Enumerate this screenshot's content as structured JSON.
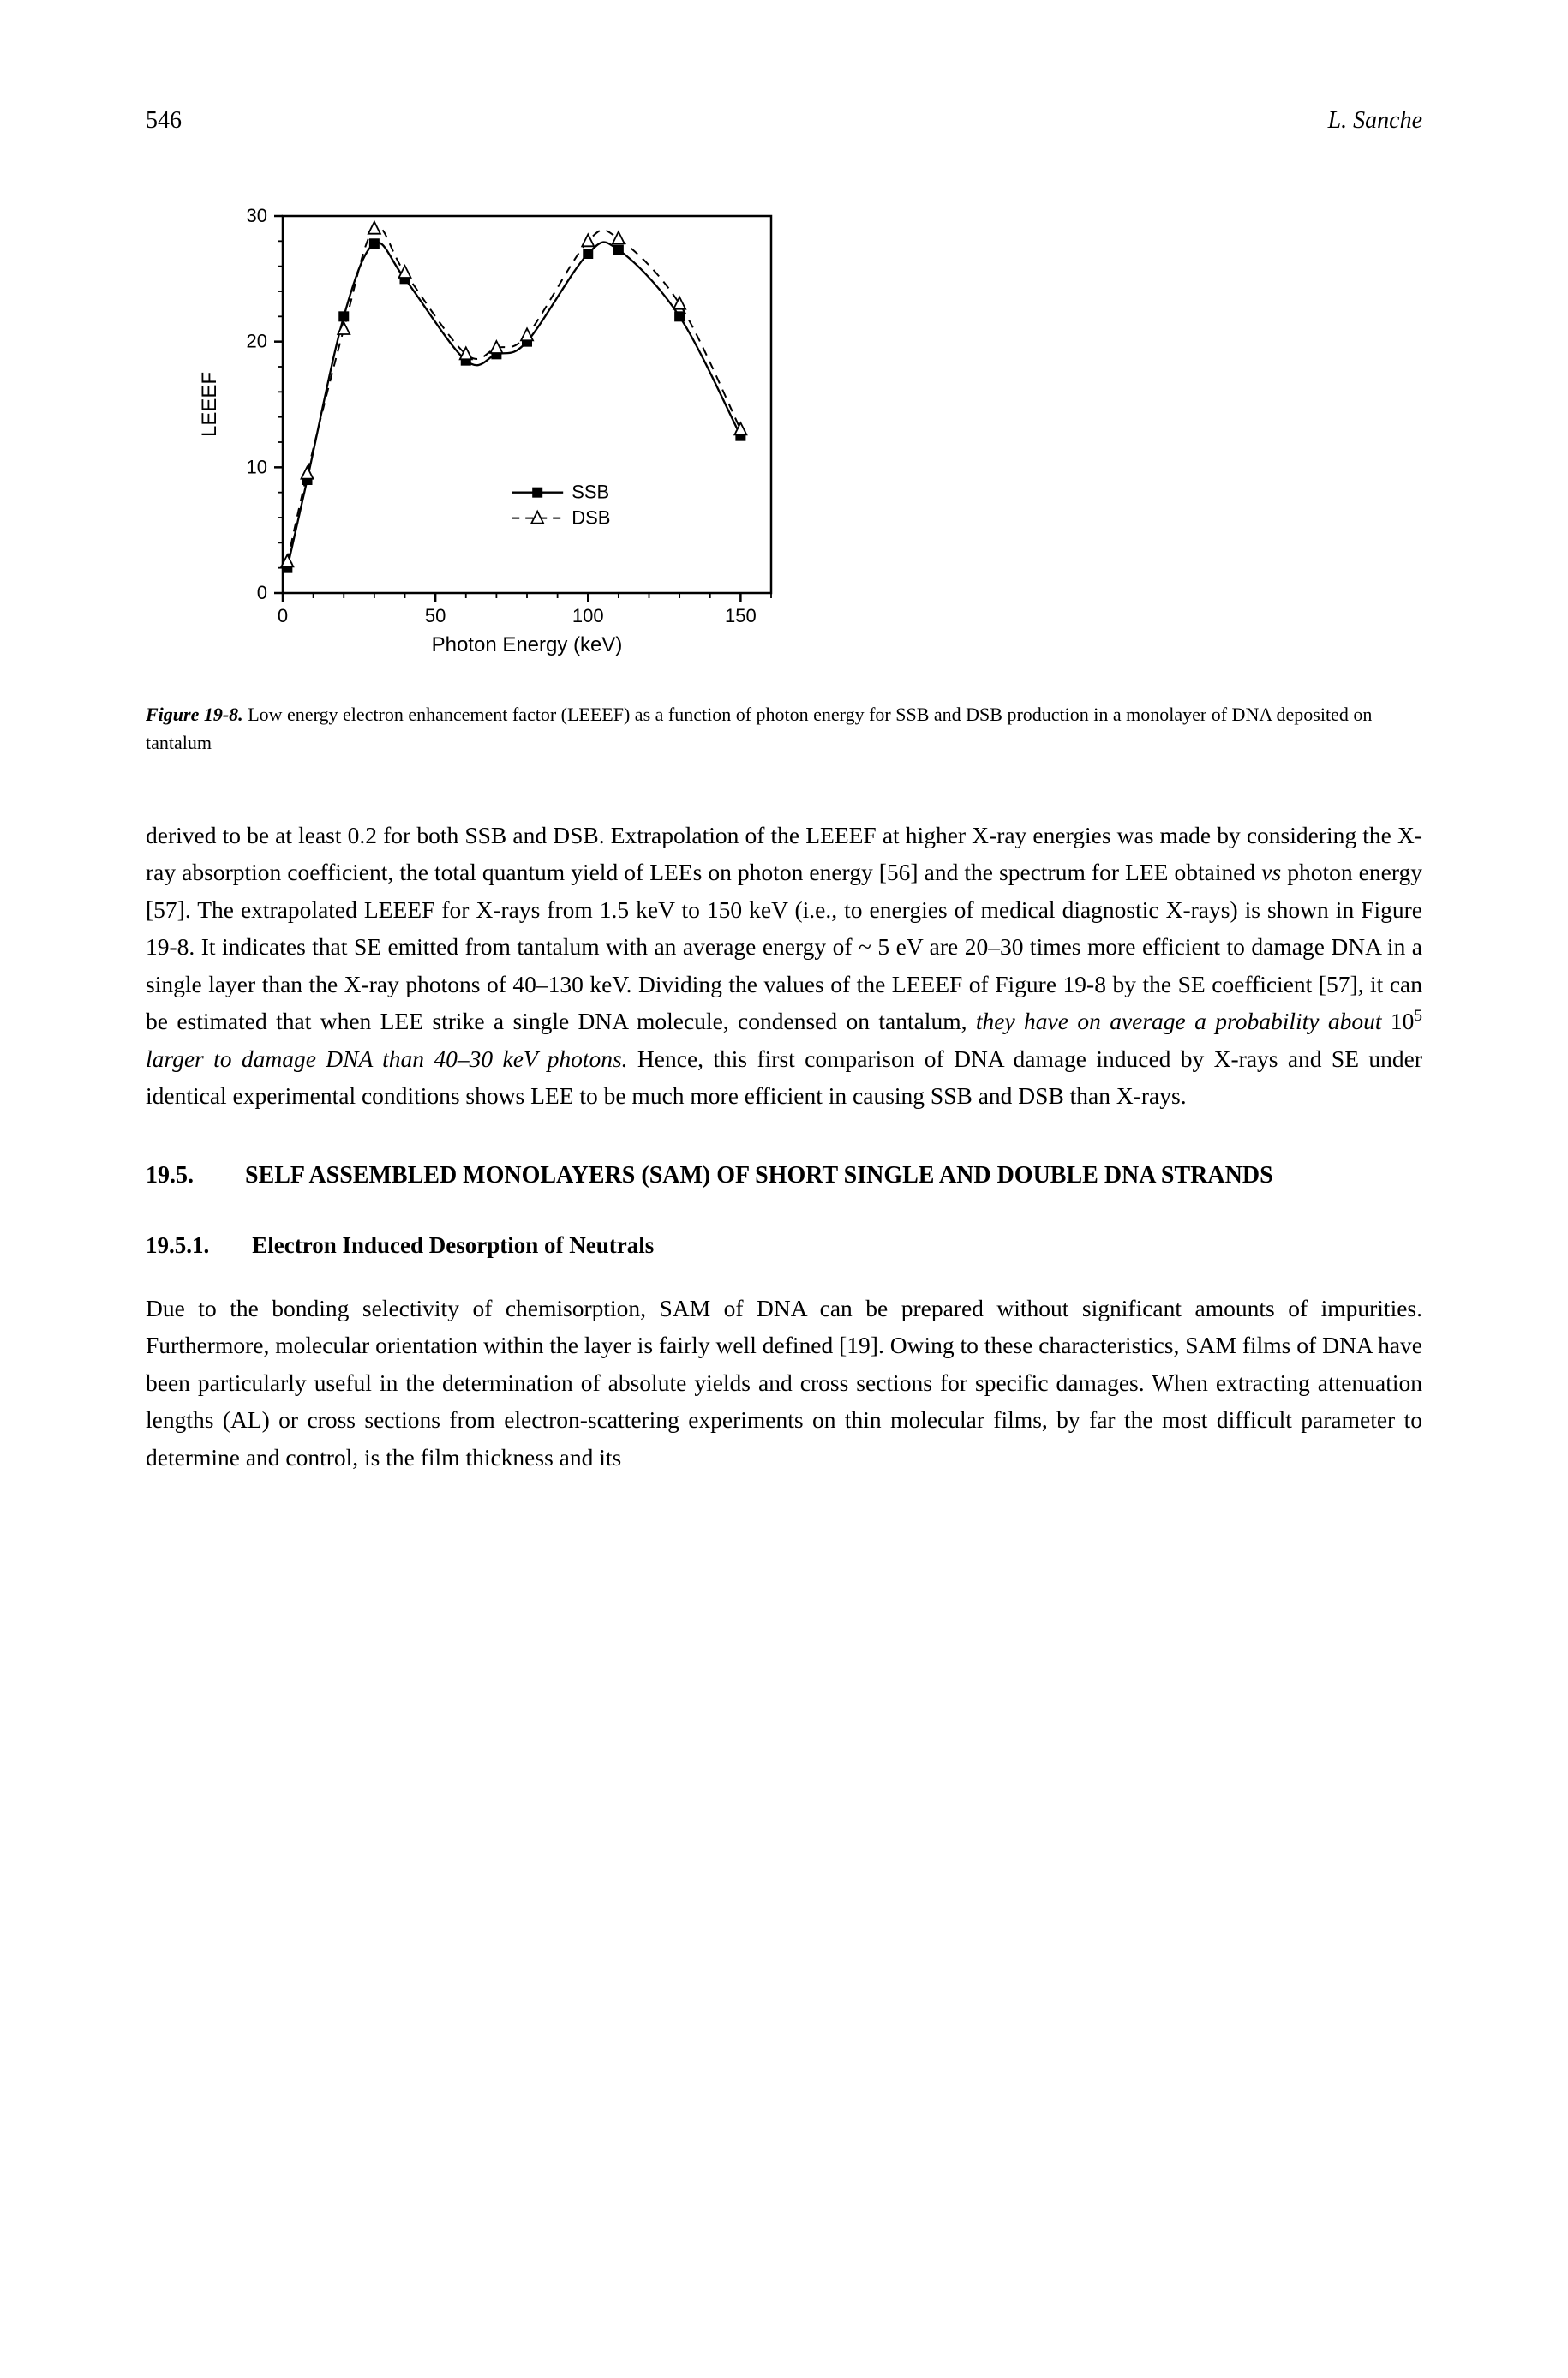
{
  "page_number": "546",
  "author": "L. Sanche",
  "chart": {
    "type": "line",
    "xlabel": "Photon Energy (keV)",
    "ylabel": "LEEEF",
    "xlim": [
      0,
      160
    ],
    "ylim": [
      0,
      30
    ],
    "xticks": [
      0,
      50,
      100,
      150
    ],
    "yticks": [
      0,
      10,
      20,
      30
    ],
    "background": "#ffffff",
    "axis_color": "#000000",
    "tick_fontsize": 18,
    "label_fontsize": 20,
    "legend": {
      "entries": [
        "SSB",
        "DSB"
      ],
      "markers": [
        "filled-square",
        "open-triangle"
      ],
      "linestyles": [
        "solid",
        "dashed"
      ],
      "position": "lower-right-inside"
    },
    "series": [
      {
        "name": "SSB",
        "marker": "filled-square",
        "marker_color": "#000000",
        "line_color": "#000000",
        "linestyle": "solid",
        "line_width": 2.3,
        "x": [
          1.5,
          8,
          20,
          30,
          40,
          60,
          70,
          80,
          100,
          110,
          130,
          150
        ],
        "y": [
          2,
          9,
          22,
          27.8,
          25,
          18.5,
          19,
          20,
          27,
          27.3,
          22,
          12.5
        ]
      },
      {
        "name": "DSB",
        "marker": "open-triangle",
        "marker_fill": "#ffffff",
        "marker_stroke": "#000000",
        "line_color": "#000000",
        "linestyle": "dashed",
        "line_width": 2,
        "x": [
          1.5,
          8,
          20,
          30,
          40,
          60,
          70,
          80,
          100,
          110,
          130,
          150
        ],
        "y": [
          2.5,
          9.5,
          21,
          29,
          25.5,
          19,
          19.5,
          20.5,
          28,
          28.2,
          23,
          13
        ]
      }
    ]
  },
  "figure_label": "Figure 19-8.",
  "figure_caption": "Low energy electron enhancement factor (LEEEF) as a function of photon energy for SSB and DSB production in a monolayer of DNA deposited on tantalum",
  "body_text": "derived to be at least 0.2 for both SSB and DSB. Extrapolation of the LEEEF at higher X-ray energies was made by considering the X-ray absorption coefficient, the total quantum yield of LEEs on photon energy [56] and the spectrum for LEE obtained vs photon energy [57]. The extrapolated LEEEF for X-rays from 1.5 keV to 150 keV (i.e., to energies of medical diagnostic X-rays) is shown in Figure 19-8. It indicates that SE emitted from tantalum with an average energy of ~ 5 eV are 20–30 times more efficient to damage DNA in a single layer than the X-ray photons of 40–130 keV. Dividing the values of the LEEEF of Figure 19-8 by the SE coefficient [57], it can be estimated that when LEE strike a single DNA molecule, condensed on tantalum, they have on average a probability about 10⁵ larger to damage DNA than 40–30 keV photons. Hence, this first comparison of DNA damage induced by X-rays and SE under identical experimental conditions shows LEE to be much more efficient in causing SSB and DSB than X-rays.",
  "section_number": "19.5.",
  "section_title": "SELF ASSEMBLED MONOLAYERS (SAM) OF SHORT SINGLE AND DOUBLE DNA STRANDS",
  "subsection_number": "19.5.1.",
  "subsection_title": "Electron Induced Desorption of Neutrals",
  "para2": "Due to the bonding selectivity of chemisorption, SAM of DNA can be prepared without significant amounts of impurities. Furthermore, molecular orientation within the layer is fairly well defined [19]. Owing to these characteristics, SAM films of DNA have been particularly useful in the determination of absolute yields and cross sections for specific damages. When extracting attenuation lengths (AL) or cross sections from electron-scattering experiments on thin molecular films, by far the most difficult parameter to determine and control, is the film thickness and its"
}
